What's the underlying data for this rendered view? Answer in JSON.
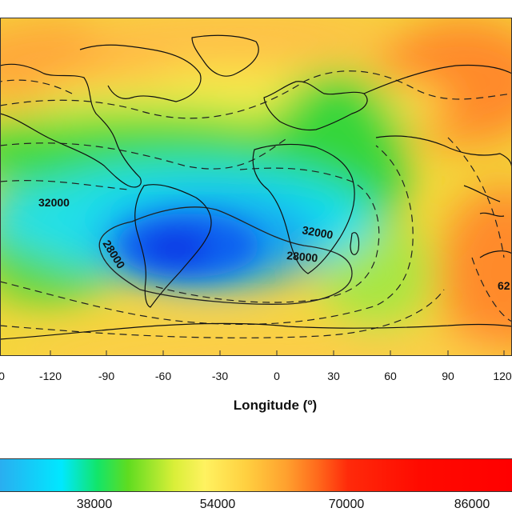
{
  "map": {
    "xlabel": "Longitude (º)",
    "x_ticks": [
      "0",
      "-120",
      "-90",
      "-60",
      "-30",
      "0",
      "30",
      "60",
      "90",
      "120"
    ],
    "contour_labels": [
      "32000",
      "32000",
      "28000",
      "28000",
      "62"
    ]
  },
  "colorbar": {
    "ticks": [
      "38000",
      "54000",
      "70000",
      "86000"
    ],
    "colors": [
      "#2aaef0",
      "#00e8ff",
      "#12e56a",
      "#d9ef38",
      "#fff260",
      "#ffa02e",
      "#ff2a0a",
      "#ff0000"
    ]
  }
}
